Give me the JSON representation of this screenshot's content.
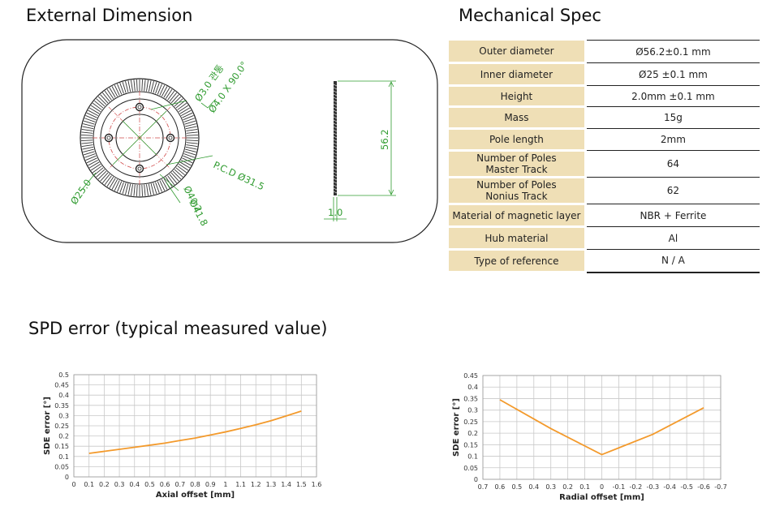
{
  "headings": {
    "external_dimension": "External Dimension",
    "mechanical_spec": "Mechanical Spec",
    "spd_error": "SPD error (typical measured value)"
  },
  "drawing": {
    "hole_note_1": "Ø3.0 관통",
    "hole_note_2": "Ø4.0 X 90.0°",
    "pcd": "P.C.D Ø31.5",
    "inner_dia": "Ø25.0",
    "dia_40": "Ø40.2",
    "dia_41": "Ø41.8",
    "height": "56.2",
    "thickness": "1.0"
  },
  "spec": [
    {
      "key_lines": [
        "Outer diameter"
      ],
      "value": "Ø56.2±0.1 mm"
    },
    {
      "key_lines": [
        "Inner diameter"
      ],
      "value": "Ø25 ±0.1 mm"
    },
    {
      "key_lines": [
        "Height"
      ],
      "value": "2.0mm ±0.1 mm"
    },
    {
      "key_lines": [
        "Mass"
      ],
      "value": "15g"
    },
    {
      "key_lines": [
        "Pole length"
      ],
      "value": "2mm"
    },
    {
      "key_lines": [
        "Number of Poles",
        "Master Track"
      ],
      "value": "64"
    },
    {
      "key_lines": [
        "Number of Poles",
        "Nonius Track"
      ],
      "value": "62"
    },
    {
      "key_lines": [
        "Material of magnetic layer"
      ],
      "value": "NBR + Ferrite"
    },
    {
      "key_lines": [
        "Hub material"
      ],
      "value": "Al"
    },
    {
      "key_lines": [
        "Type of reference"
      ],
      "value": "N / A"
    }
  ],
  "chart_data": [
    {
      "type": "line",
      "xlabel": "Axial offset [mm]",
      "ylabel": "SDE error [°]",
      "x_ticks": [
        "0",
        "0.1",
        "0.2",
        "0.3",
        "0.4",
        "0.5",
        "0.6",
        "0.7",
        "0.8",
        "0.9",
        "1",
        "1.1",
        "1.2",
        "1.3",
        "1.4",
        "1.5",
        "1.6"
      ],
      "y_ticks": [
        "0",
        "0.05",
        "0.1",
        "0.15",
        "0.2",
        "0.25",
        "0.3",
        "0.35",
        "0.4",
        "0.45",
        "0.5"
      ],
      "xlim": [
        0,
        1.6
      ],
      "ylim": [
        0,
        0.5
      ],
      "grid": true,
      "color": "#f39a2c",
      "x": [
        0.1,
        0.2,
        0.3,
        0.4,
        0.5,
        0.6,
        0.7,
        0.8,
        0.9,
        1.0,
        1.1,
        1.2,
        1.3,
        1.4,
        1.5
      ],
      "y": [
        0.115,
        0.125,
        0.135,
        0.145,
        0.155,
        0.165,
        0.178,
        0.19,
        0.205,
        0.22,
        0.237,
        0.255,
        0.275,
        0.298,
        0.322
      ]
    },
    {
      "type": "line",
      "xlabel": "Radial offset [mm]",
      "ylabel": "SDE error [°]",
      "x_ticks": [
        "0.7",
        "0.6",
        "0.5",
        "0.4",
        "0.3",
        "0.2",
        "0.1",
        "0",
        "-0.1",
        "-0.2",
        "-0.3",
        "-0.4",
        "-0.5",
        "-0.6",
        "-0.7"
      ],
      "y_ticks": [
        "0",
        "0.05",
        "0.1",
        "0.15",
        "0.2",
        "0.25",
        "0.3",
        "0.35",
        "0.4",
        "0.45"
      ],
      "xlim": [
        0.7,
        -0.7
      ],
      "ylim": [
        0,
        0.45
      ],
      "grid": true,
      "color": "#f39a2c",
      "x": [
        0.6,
        0.3,
        0,
        -0.3,
        -0.6
      ],
      "y": [
        0.345,
        0.22,
        0.107,
        0.195,
        0.31
      ]
    }
  ]
}
